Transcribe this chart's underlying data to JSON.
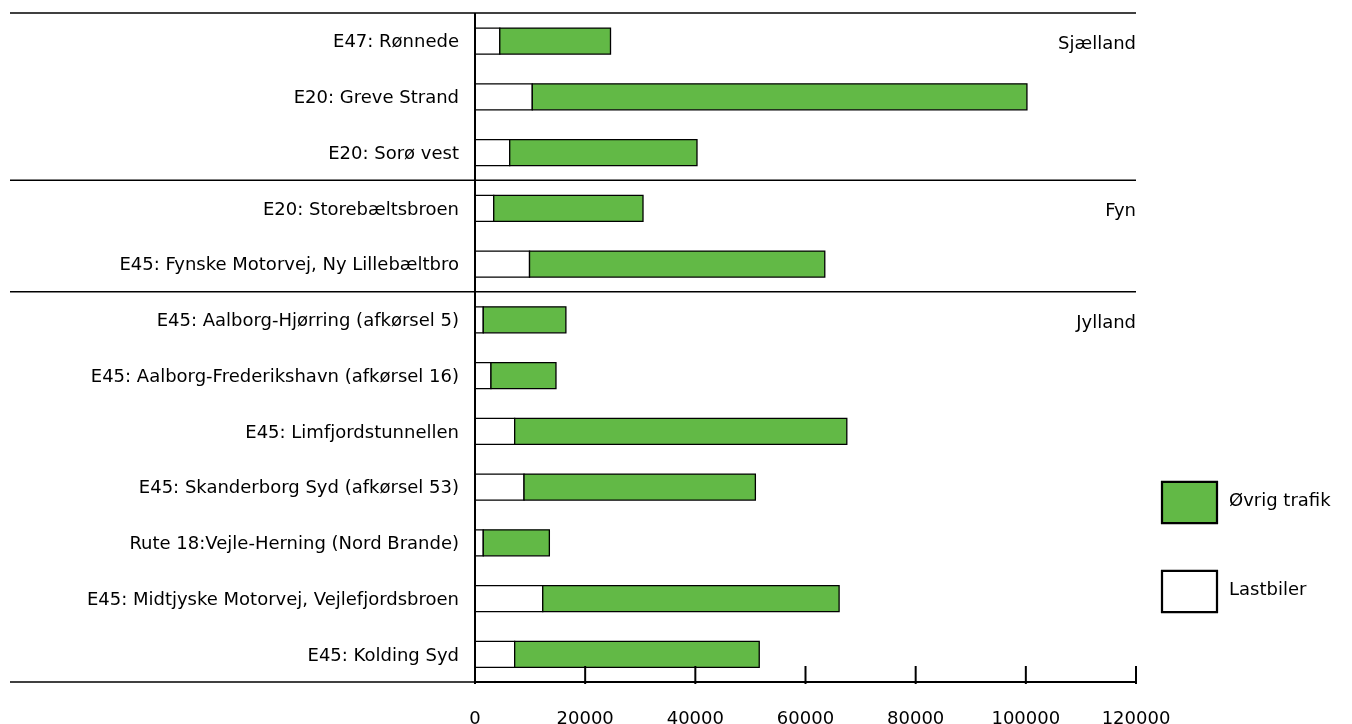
{
  "chart_data": {
    "type": "bar",
    "orientation": "horizontal",
    "stacked": true,
    "categories": [
      "E47: Rønnede",
      "E20: Greve Strand",
      "E20: Sorø vest",
      "E20: Storebæltsbroen",
      "E45: Fynske Motorvej, Ny Lillebæltbro",
      "E45: Aalborg-Hjørring (afkørsel 5)",
      "E45: Aalborg-Frederikshavn (afkørsel 16)",
      "E45: Limfjordstunnellen",
      "E45: Skanderborg Syd (afkørsel 53)",
      "Rute 18:Vejle-Herning (Nord Brande)",
      "E45: Midtjyske Motorvej, Vejlefjordsbroen",
      "E45: Kolding Syd"
    ],
    "series": [
      {
        "name": "Lastbiler",
        "color": "#ffffff",
        "values": [
          4500,
          10400,
          6300,
          3400,
          9900,
          1500,
          2900,
          7200,
          8900,
          1500,
          12300,
          7200
        ]
      },
      {
        "name": "Øvrig trafik",
        "color": "#62b946",
        "values": [
          20100,
          89800,
          34000,
          27100,
          53600,
          15000,
          11800,
          60300,
          42000,
          12000,
          53800,
          44400
        ]
      }
    ],
    "xlim": [
      0,
      120000
    ],
    "xticks": [
      0,
      20000,
      40000,
      60000,
      80000,
      100000,
      120000
    ],
    "grid": false,
    "legend": "right",
    "annotations": [
      "Sjælland",
      "Fyn",
      "Jylland"
    ]
  }
}
